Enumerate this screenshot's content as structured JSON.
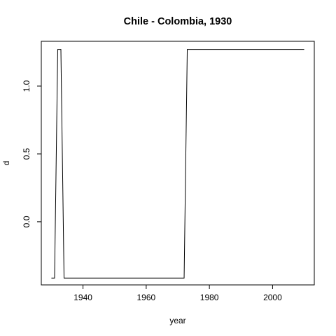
{
  "chart_data": {
    "type": "line",
    "title": "Chile - Colombia, 1930",
    "xlabel": "year",
    "ylabel": "d",
    "xlim": [
      1926.8,
      2013.2
    ],
    "ylim": [
      -0.465,
      1.33
    ],
    "x_ticks": [
      1940,
      1960,
      1980,
      2000
    ],
    "x_tick_labels": [
      "1940",
      "1960",
      "1980",
      "2000"
    ],
    "y_ticks": [
      0.0,
      0.5,
      1.0
    ],
    "y_tick_labels": [
      "0.0",
      "0.5",
      "1.0"
    ],
    "grid": false,
    "series": [
      {
        "x": [
          1930,
          1931,
          1932,
          1933,
          1934,
          1972,
          1973,
          2010
        ],
        "y": [
          -0.415,
          -0.415,
          1.27,
          1.27,
          -0.415,
          -0.415,
          1.27,
          1.27
        ]
      }
    ]
  }
}
